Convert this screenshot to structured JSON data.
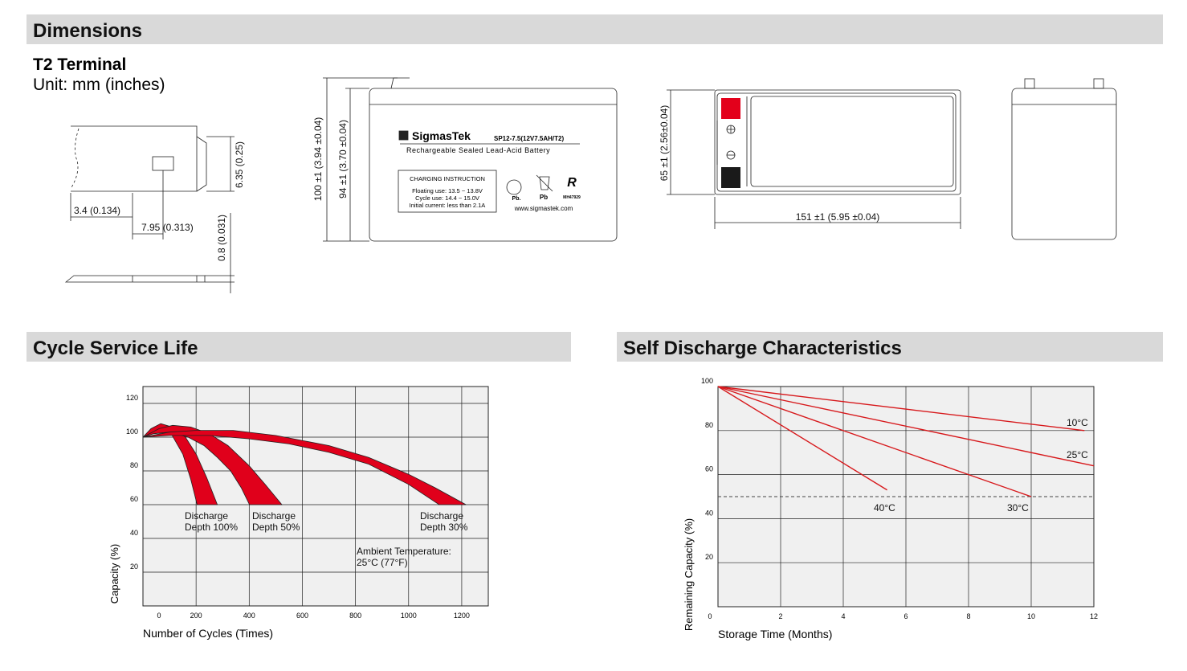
{
  "dimensions": {
    "title": "Dimensions",
    "terminal_title": "T2 Terminal",
    "unit": "Unit: mm (inches)",
    "terminal_dims": [
      "6.35 (0.25)",
      "3.4 (0.134)",
      "7.95 (0.313)",
      "0.8 (0.031)"
    ],
    "front_view": {
      "height_total": "100 ±1 (3.94 ±0.04)",
      "height_case": "94 ±1 (3.70 ±0.04)",
      "label": {
        "brand": "SigmasTek",
        "model": "SP12-7.5(12V7.5AH/T2)",
        "description": "Rechargeable Sealed Lead-Acid Battery",
        "charging_title": "CHARGING INSTRUCTION",
        "charging_lines": [
          "Floating use: 13.5 ~ 13.8V",
          "Cycle use: 14.4 ~ 15.0V",
          "Initial current: less than 2.1A"
        ],
        "icon_labels": [
          "Pb.",
          "Pb",
          "MH47929"
        ],
        "website": "www.sigmastek.com"
      }
    },
    "top_view": {
      "width": "65 ±1 (2.56±0.04)",
      "length": "151 ±1 (5.95 ±0.04)"
    }
  },
  "chart_data": [
    {
      "type": "area",
      "title": "Cycle Service Life",
      "x_label": "Number of Cycles (Times)",
      "y_label": "Capacity (%)",
      "xlim": [
        0,
        1300
      ],
      "ylim": [
        0,
        130
      ],
      "xticks": [
        0,
        200,
        400,
        600,
        800,
        1000,
        1200
      ],
      "yticks": [
        20,
        40,
        60,
        80,
        100,
        120
      ],
      "grid": true,
      "series": [
        {
          "name": "Discharge Depth 100%",
          "color": "#e0001b",
          "x": [
            0,
            30,
            67,
            110,
            160,
            200,
            240,
            280,
            204,
            180,
            150,
            110,
            60,
            0
          ],
          "values": [
            100,
            105,
            108,
            106,
            100,
            90,
            76,
            60,
            60,
            75,
            90,
            101,
            104,
            100
          ]
        },
        {
          "name": "Discharge Depth 50%",
          "color": "#e0001b",
          "x": [
            0,
            60,
            112,
            180,
            250,
            320,
            400,
            460,
            523,
            401,
            370,
            330,
            280,
            230,
            170,
            100,
            40,
            0
          ],
          "values": [
            100,
            105,
            107,
            106,
            102,
            95,
            83,
            72,
            60,
            60,
            70,
            80,
            88,
            95,
            100,
            103,
            102,
            100
          ]
        },
        {
          "name": "Discharge Depth 30%",
          "color": "#e0001b",
          "x": [
            0,
            100,
            200,
            340,
            500,
            700,
            850,
            1000,
            1100,
            1216,
            1115,
            1000,
            850,
            700,
            550,
            400,
            250,
            100,
            0
          ],
          "values": [
            100,
            103,
            104,
            104,
            101,
            95,
            88,
            78,
            70,
            60,
            60,
            72,
            84,
            91,
            96,
            99,
            101,
            101,
            100
          ]
        }
      ],
      "annotations": [
        "Ambient Temperature: 25°C (77°F)"
      ]
    },
    {
      "type": "line",
      "title": "Self Discharge Characteristics",
      "x_label": "Storage Time (Months)",
      "y_label": "Remaining Capacity (%)",
      "xlim": [
        0,
        12
      ],
      "ylim": [
        0,
        100
      ],
      "xticks": [
        0,
        2,
        4,
        6,
        8,
        10,
        12
      ],
      "yticks": [
        20,
        40,
        60,
        80,
        100
      ],
      "grid": true,
      "reference_line": 50,
      "series": [
        {
          "name": "10°C",
          "color": "#d7191c",
          "x": [
            0,
            11.7
          ],
          "values": [
            100,
            80
          ]
        },
        {
          "name": "25°C",
          "color": "#d7191c",
          "x": [
            0,
            12
          ],
          "values": [
            100,
            64
          ]
        },
        {
          "name": "30°C",
          "color": "#d7191c",
          "x": [
            0,
            10
          ],
          "values": [
            100,
            50
          ]
        },
        {
          "name": "40°C",
          "color": "#d7191c",
          "x": [
            0,
            5.4
          ],
          "values": [
            100,
            53
          ]
        }
      ]
    }
  ]
}
